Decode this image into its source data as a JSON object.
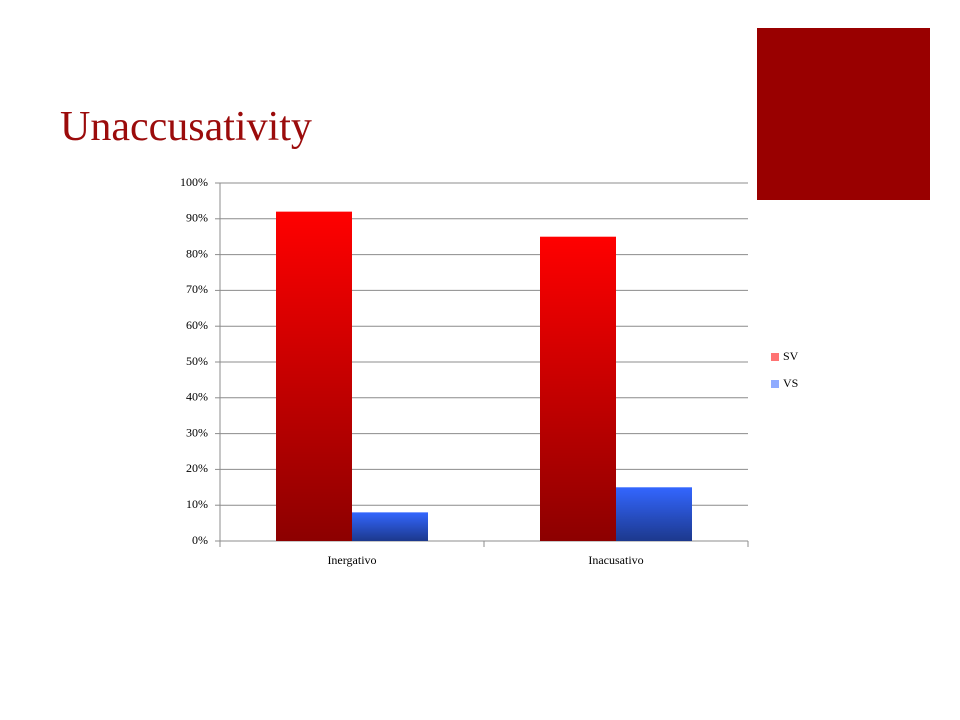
{
  "chart_data": {
    "type": "bar",
    "title": "Unaccusativity",
    "categories": [
      "Inergativo",
      "Inacusativo"
    ],
    "series": [
      {
        "name": "SV",
        "color": "#ff0000",
        "values": [
          92,
          85
        ]
      },
      {
        "name": "VS",
        "color": "#3366ff",
        "values": [
          8,
          15
        ]
      }
    ],
    "ylim": [
      0,
      100
    ],
    "yticks": [
      {
        "value": 0,
        "label": "0%"
      },
      {
        "value": 10,
        "label": "10%"
      },
      {
        "value": 20,
        "label": "20%"
      },
      {
        "value": 30,
        "label": "30%"
      },
      {
        "value": 40,
        "label": "40%"
      },
      {
        "value": 50,
        "label": "50%"
      },
      {
        "value": 60,
        "label": "60%"
      },
      {
        "value": 70,
        "label": "70%"
      },
      {
        "value": 80,
        "label": "80%"
      },
      {
        "value": 90,
        "label": "90%"
      },
      {
        "value": 100,
        "label": "100%"
      }
    ],
    "grid": true,
    "legend": "right"
  }
}
